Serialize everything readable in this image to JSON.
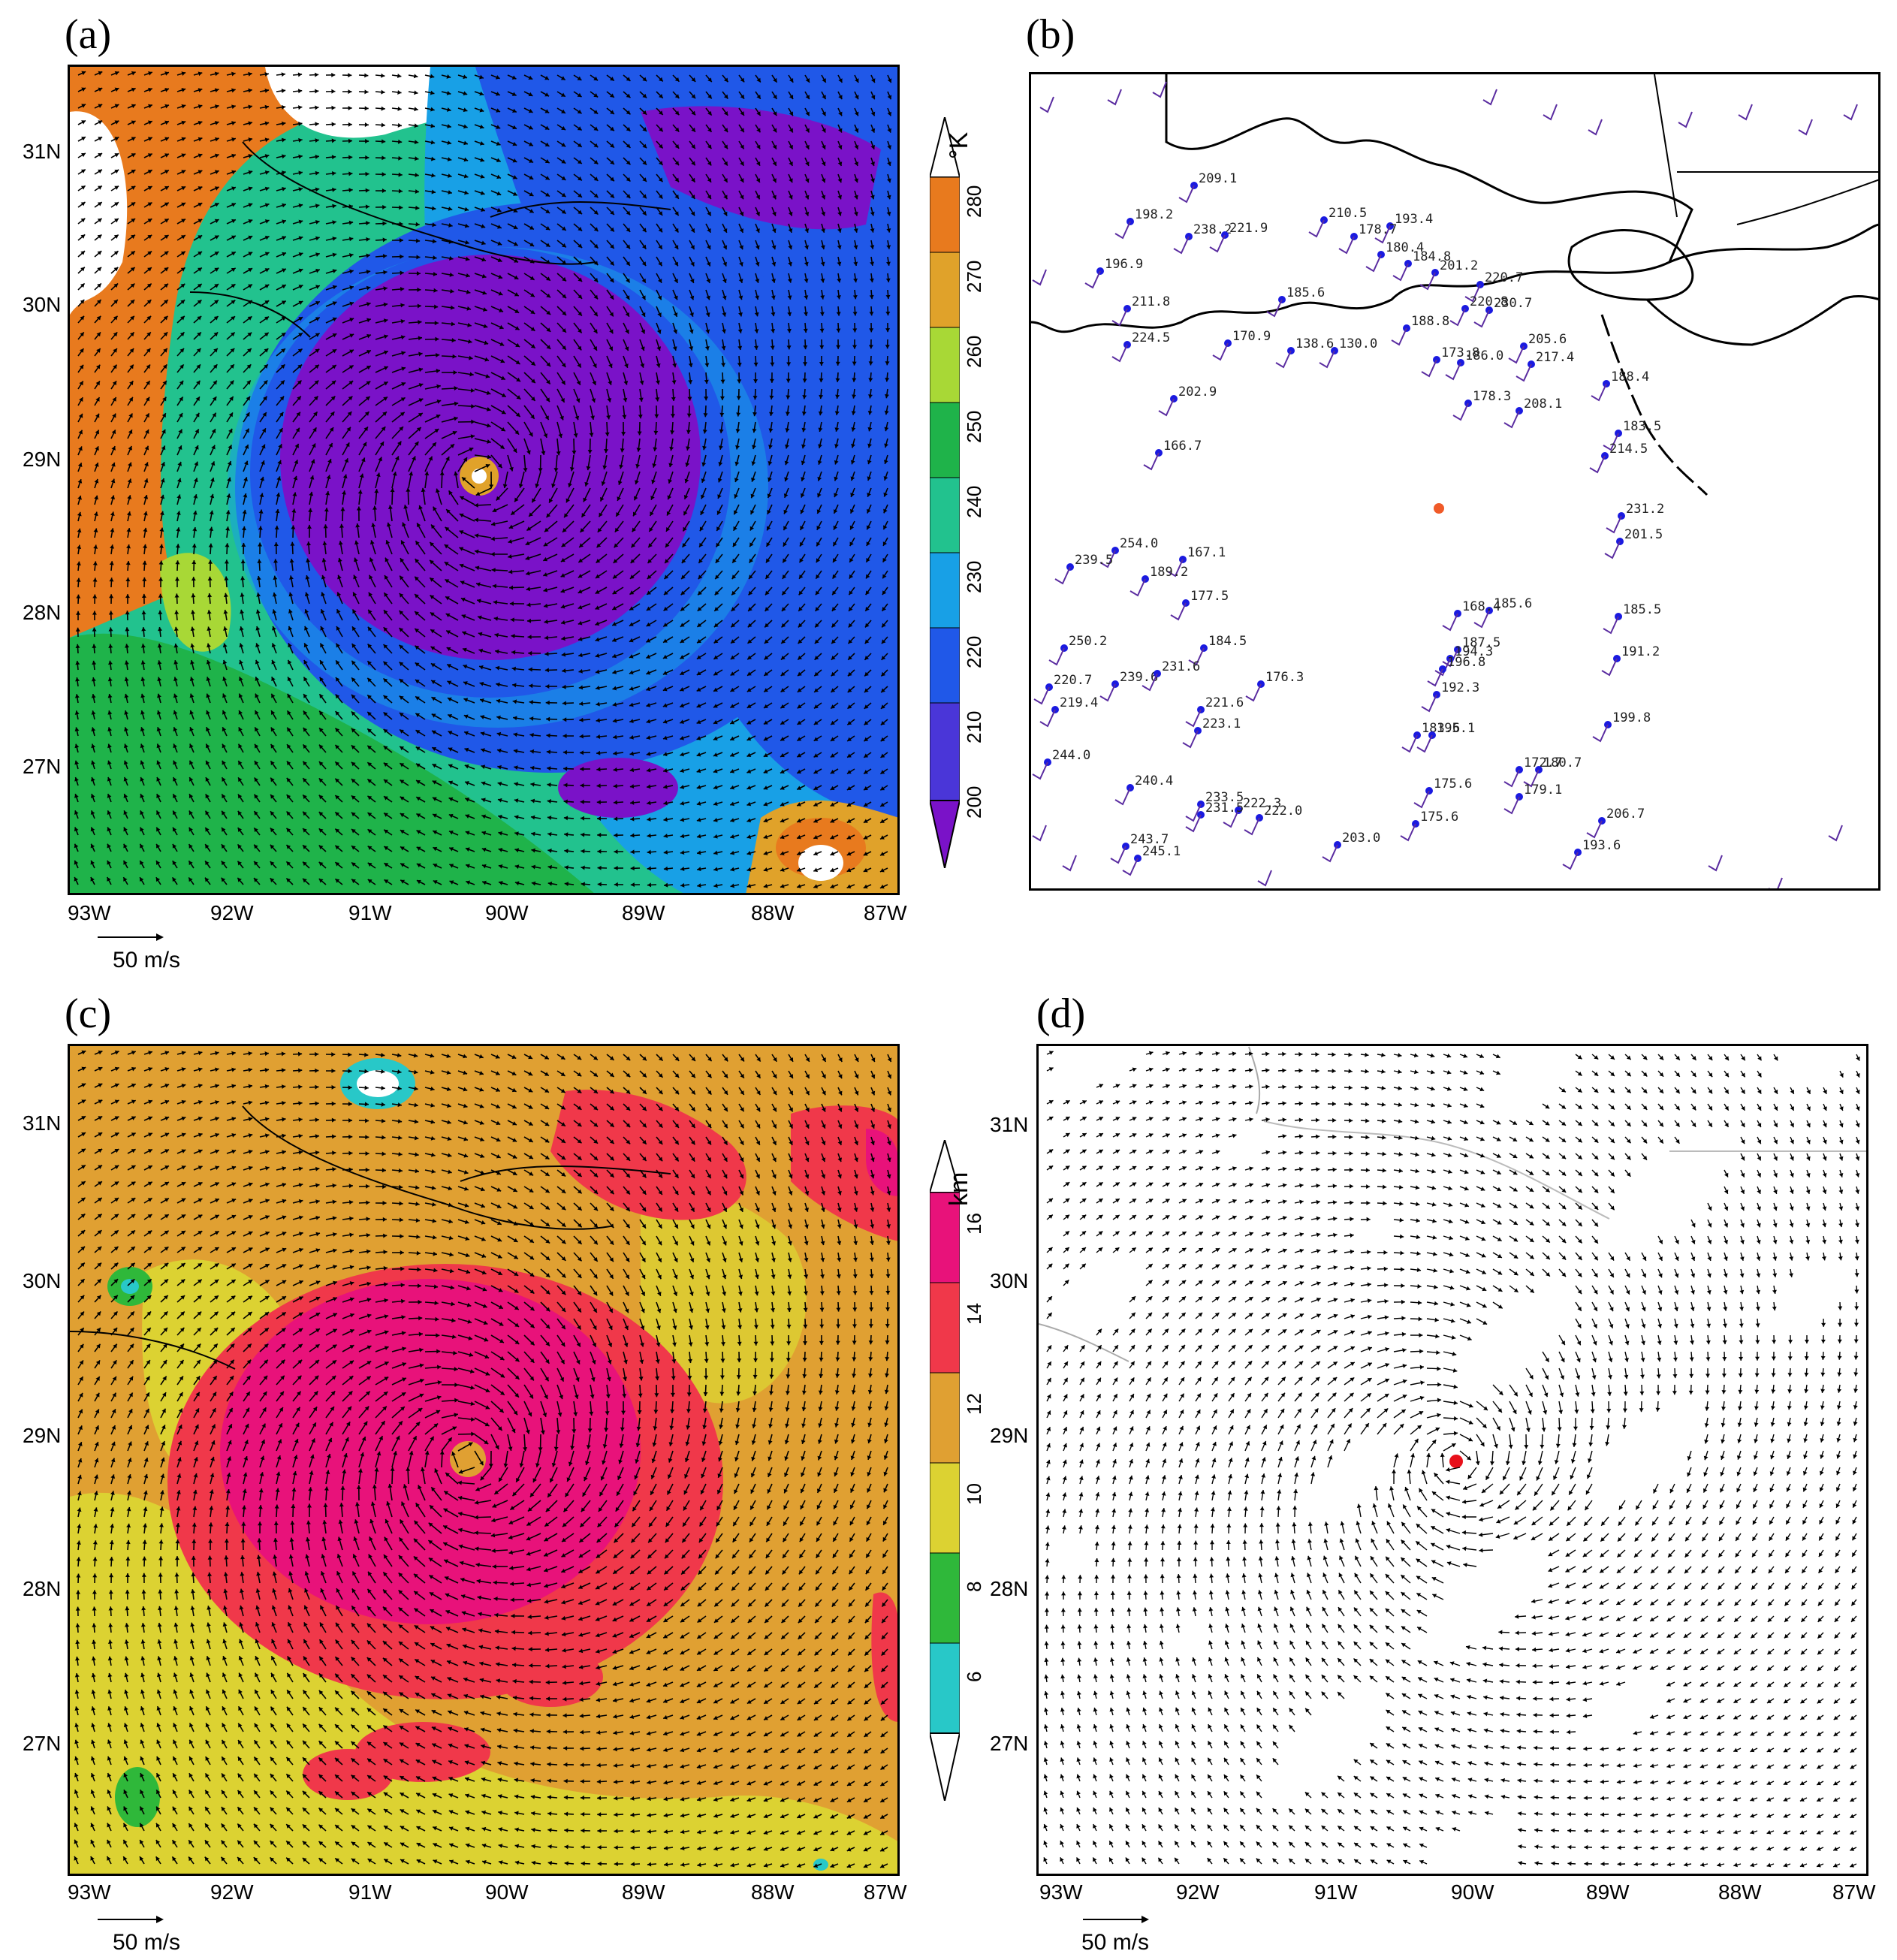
{
  "panels": [
    {
      "letter": "(a)",
      "colorbar_unit": "°K",
      "colorbar_labels": [
        "280",
        "270",
        "260",
        "250",
        "240",
        "230",
        "220",
        "210",
        "200"
      ],
      "colors": [
        "#e87a1e",
        "#e0a22a",
        "#a8d836",
        "#1fb34a",
        "#22c28e",
        "#18a0e6",
        "#2058e8",
        "#4a36d8",
        "#7a12c8"
      ]
    },
    {
      "letter": "(b)"
    },
    {
      "letter": "(c)",
      "colorbar_unit": "km",
      "colorbar_labels": [
        "16",
        "14",
        "12",
        "10",
        "8",
        "6"
      ],
      "colors": [
        "#e8127a",
        "#f0384a",
        "#e0a032",
        "#dcd232",
        "#2fb83a",
        "#28c8c8"
      ]
    },
    {
      "letter": "(d)"
    }
  ],
  "axes": {
    "lon_labels": [
      "93W",
      "92W",
      "91W",
      "90W",
      "89W",
      "88W",
      "87W"
    ],
    "lat_labels": [
      "31N",
      "30N",
      "29N",
      "28N",
      "27N"
    ],
    "scale_label": "50 m/s"
  },
  "stations": [
    {
      "label": "209.1"
    },
    {
      "label": "198.2"
    },
    {
      "label": "238.2"
    },
    {
      "label": "221.9"
    },
    {
      "label": "210.5"
    },
    {
      "label": "193.4"
    },
    {
      "label": "178.7"
    },
    {
      "label": "180.4"
    },
    {
      "label": "184.8"
    },
    {
      "label": "201.2"
    },
    {
      "label": "196.9"
    },
    {
      "label": "211.8"
    },
    {
      "label": "185.6"
    },
    {
      "label": "220.7"
    },
    {
      "label": "220.8"
    },
    {
      "label": "230.7"
    },
    {
      "label": "224.5"
    },
    {
      "label": "170.9"
    },
    {
      "label": "138.6"
    },
    {
      "label": "130.0"
    },
    {
      "label": "188.8"
    },
    {
      "label": "173.8"
    },
    {
      "label": "186.0"
    },
    {
      "label": "205.6"
    },
    {
      "label": "217.4"
    },
    {
      "label": "188.4"
    },
    {
      "label": "202.9"
    },
    {
      "label": "178.3"
    },
    {
      "label": "208.1"
    },
    {
      "label": "183.5"
    },
    {
      "label": "166.7"
    },
    {
      "label": "214.5"
    },
    {
      "label": "231.2"
    },
    {
      "label": "201.5"
    },
    {
      "label": "254.0"
    },
    {
      "label": "167.1"
    },
    {
      "label": "239.5"
    },
    {
      "label": "189.2"
    },
    {
      "label": "177.5"
    },
    {
      "label": "185.6"
    },
    {
      "label": "168.4"
    },
    {
      "label": "185.5"
    },
    {
      "label": "250.2"
    },
    {
      "label": "184.5"
    },
    {
      "label": "187.5"
    },
    {
      "label": "194.3"
    },
    {
      "label": "196.8"
    },
    {
      "label": "191.2"
    },
    {
      "label": "220.7"
    },
    {
      "label": "239.6"
    },
    {
      "label": "231.6"
    },
    {
      "label": "176.3"
    },
    {
      "label": "192.3"
    },
    {
      "label": "219.4"
    },
    {
      "label": "221.6"
    },
    {
      "label": "199.8"
    },
    {
      "label": "223.1"
    },
    {
      "label": "183.6"
    },
    {
      "label": "195.1"
    },
    {
      "label": "244.0"
    },
    {
      "label": "172.7"
    },
    {
      "label": "180.7"
    },
    {
      "label": "240.4"
    },
    {
      "label": "175.6"
    },
    {
      "label": "179.1"
    },
    {
      "label": "233.5"
    },
    {
      "label": "222.3"
    },
    {
      "label": "231.5"
    },
    {
      "label": "222.0"
    },
    {
      "label": "175.6"
    },
    {
      "label": "206.7"
    },
    {
      "label": "243.7"
    },
    {
      "label": "245.1"
    },
    {
      "label": "203.0"
    },
    {
      "label": "193.6"
    }
  ]
}
